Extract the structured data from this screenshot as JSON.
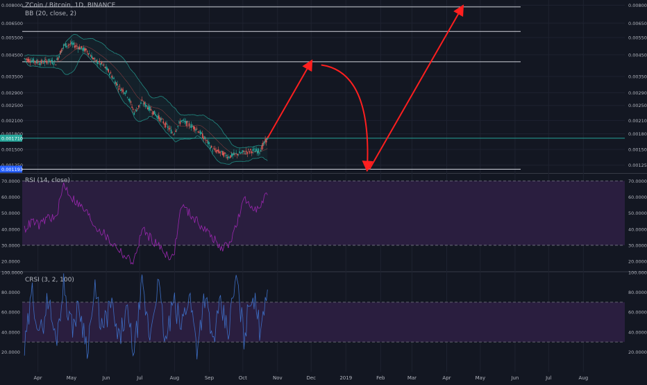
{
  "header": {
    "title": "ZCoin / Bitcoin, 1D, BINANCE",
    "bb_indicator": "BB (20, close, 2)",
    "rsi_indicator": "RSI (14, close)",
    "crsi_indicator": "CRSI (3, 2, 100)"
  },
  "colors": {
    "background": "#131722",
    "candle_up": "#26a69a",
    "candle_down": "#ef5350",
    "bollinger": "#26a69a",
    "rsi_line": "#9c27b0",
    "rsi_band": "#2a1e3f",
    "crsi_line": "#3d6ec5",
    "crsi_band": "#2a1e3f",
    "projection_arrow": "#ff1f1f",
    "level_line": "#d1d4dc",
    "price_tag_current": "#26a69a",
    "price_tag_support": "#2962ff",
    "axis_text": "#b2b5be",
    "gridline": "#1e2230"
  },
  "chart_data": [
    {
      "type": "candlestick",
      "name": "price-pane",
      "title": "ZCoin / Bitcoin, 1D, BINANCE",
      "y_scale": "log",
      "ylim": [
        0.00115,
        0.0085
      ],
      "y_tick_labels_left": [
        "0.008000",
        "0.006500",
        "0.005500",
        "0.004500",
        "0.003500",
        "0.002900",
        "0.002500",
        "0.002100",
        "0.001800",
        "0.001500",
        "0.001250"
      ],
      "y_tick_values_left": [
        0.008,
        0.0065,
        0.0055,
        0.0045,
        0.0035,
        0.0029,
        0.0025,
        0.0021,
        0.0018,
        0.0015,
        0.00125
      ],
      "y_tick_labels_right": [
        "0.008000",
        "0.006500",
        "0.005500",
        "0.004500",
        "0.003500",
        "0.002900",
        "0.002500",
        "0.002100",
        "0.001800",
        "0.001500",
        "0.001250"
      ],
      "y_tick_values_right": [
        0.008,
        0.0065,
        0.0055,
        0.0045,
        0.0035,
        0.0029,
        0.0025,
        0.0021,
        0.0018,
        0.0015,
        0.00125
      ],
      "price_tags": [
        {
          "label": "0.001710",
          "value": 0.00171,
          "kind": "current"
        },
        {
          "label": "0.001193",
          "value": 0.001193,
          "kind": "support"
        }
      ],
      "horizontal_levels": [
        0.00785,
        0.0059,
        0.00415,
        0.00171,
        0.001193
      ],
      "indicator": "BB (20, close, 2)",
      "price_path_weekly": [
        {
          "date": "2018-03-20",
          "close": 0.0043
        },
        {
          "date": "2018-03-27",
          "close": 0.0042
        },
        {
          "date": "2018-04-03",
          "close": 0.0041
        },
        {
          "date": "2018-04-10",
          "close": 0.0042
        },
        {
          "date": "2018-04-17",
          "close": 0.0041
        },
        {
          "date": "2018-04-24",
          "close": 0.005
        },
        {
          "date": "2018-05-01",
          "close": 0.0051
        },
        {
          "date": "2018-05-08",
          "close": 0.0049
        },
        {
          "date": "2018-05-15",
          "close": 0.0047
        },
        {
          "date": "2018-05-22",
          "close": 0.0042
        },
        {
          "date": "2018-05-29",
          "close": 0.004
        },
        {
          "date": "2018-06-05",
          "close": 0.0036
        },
        {
          "date": "2018-06-12",
          "close": 0.0031
        },
        {
          "date": "2018-06-19",
          "close": 0.0029
        },
        {
          "date": "2018-06-26",
          "close": 0.0023
        },
        {
          "date": "2018-07-03",
          "close": 0.0026
        },
        {
          "date": "2018-07-10",
          "close": 0.0024
        },
        {
          "date": "2018-07-17",
          "close": 0.0022
        },
        {
          "date": "2018-07-24",
          "close": 0.002
        },
        {
          "date": "2018-07-31",
          "close": 0.0018
        },
        {
          "date": "2018-08-07",
          "close": 0.0021
        },
        {
          "date": "2018-08-14",
          "close": 0.002
        },
        {
          "date": "2018-08-21",
          "close": 0.0019
        },
        {
          "date": "2018-08-28",
          "close": 0.0017
        },
        {
          "date": "2018-09-04",
          "close": 0.0015
        },
        {
          "date": "2018-09-11",
          "close": 0.00145
        },
        {
          "date": "2018-09-18",
          "close": 0.00138
        },
        {
          "date": "2018-09-25",
          "close": 0.00142
        },
        {
          "date": "2018-10-02",
          "close": 0.00145
        },
        {
          "date": "2018-10-09",
          "close": 0.00148
        },
        {
          "date": "2018-10-16",
          "close": 0.00147
        },
        {
          "date": "2018-10-23",
          "close": 0.00171
        }
      ],
      "projection_path": [
        {
          "date": "2018-10-23",
          "value": 0.00171
        },
        {
          "date": "2018-12-01",
          "value": 0.00415
        },
        {
          "date": "2018-12-10",
          "value": 0.004
        },
        {
          "date": "2019-01-20",
          "value": 0.001193
        },
        {
          "date": "2019-01-22",
          "value": 0.001193
        },
        {
          "date": "2019-04-15",
          "value": 0.00785
        }
      ]
    },
    {
      "type": "line",
      "name": "rsi-pane",
      "title": "RSI (14, close)",
      "ylim": [
        14,
        74
      ],
      "band": [
        30,
        70
      ],
      "y_tick_labels": [
        "70.0000",
        "60.0000",
        "50.0000",
        "40.0000",
        "30.0000",
        "20.0000"
      ],
      "y_tick_values": [
        70,
        60,
        50,
        40,
        30,
        20
      ],
      "x": [
        "2018-03-20",
        "2018-03-27",
        "2018-04-03",
        "2018-04-10",
        "2018-04-17",
        "2018-04-24",
        "2018-05-01",
        "2018-05-08",
        "2018-05-15",
        "2018-05-22",
        "2018-05-29",
        "2018-06-05",
        "2018-06-12",
        "2018-06-19",
        "2018-06-26",
        "2018-07-03",
        "2018-07-10",
        "2018-07-17",
        "2018-07-24",
        "2018-07-31",
        "2018-08-07",
        "2018-08-14",
        "2018-08-21",
        "2018-08-28",
        "2018-09-04",
        "2018-09-11",
        "2018-09-18",
        "2018-09-25",
        "2018-10-02",
        "2018-10-09",
        "2018-10-16",
        "2018-10-23"
      ],
      "values": [
        40,
        45,
        42,
        48,
        46,
        68,
        60,
        55,
        50,
        42,
        38,
        32,
        28,
        22,
        20,
        40,
        35,
        30,
        25,
        22,
        55,
        50,
        45,
        40,
        35,
        28,
        30,
        42,
        58,
        55,
        52,
        63
      ]
    },
    {
      "type": "line",
      "name": "crsi-pane",
      "title": "CRSI (3, 2, 100)",
      "ylim": [
        0,
        100
      ],
      "band": [
        30,
        70
      ],
      "y_tick_labels": [
        "100.0000",
        "80.0000",
        "60.0000",
        "40.0000",
        "20.0000"
      ],
      "y_tick_values": [
        100,
        80,
        60,
        40,
        20
      ],
      "x": [
        "2018-03-20",
        "2018-03-27",
        "2018-04-03",
        "2018-04-10",
        "2018-04-17",
        "2018-04-24",
        "2018-05-01",
        "2018-05-08",
        "2018-05-15",
        "2018-05-22",
        "2018-05-29",
        "2018-06-05",
        "2018-06-12",
        "2018-06-19",
        "2018-06-26",
        "2018-07-03",
        "2018-07-10",
        "2018-07-17",
        "2018-07-24",
        "2018-07-31",
        "2018-08-07",
        "2018-08-14",
        "2018-08-21",
        "2018-08-28",
        "2018-09-04",
        "2018-09-11",
        "2018-09-18",
        "2018-09-25",
        "2018-10-02",
        "2018-10-09",
        "2018-10-16",
        "2018-10-23"
      ],
      "values": [
        20,
        80,
        35,
        75,
        30,
        88,
        45,
        65,
        25,
        80,
        40,
        70,
        30,
        60,
        20,
        85,
        35,
        92,
        28,
        70,
        45,
        80,
        25,
        78,
        30,
        65,
        40,
        95,
        35,
        82,
        45,
        87
      ]
    }
  ],
  "x_axis": {
    "labels": [
      "Apr",
      "May",
      "Jun",
      "Jul",
      "Aug",
      "Sep",
      "Oct",
      "Nov",
      "Dec",
      "2019",
      "Feb",
      "Mar",
      "Apr",
      "May",
      "Jun",
      "Jul",
      "Aug"
    ],
    "dates": [
      "2018-04-01",
      "2018-05-01",
      "2018-06-01",
      "2018-07-01",
      "2018-08-01",
      "2018-09-01",
      "2018-10-01",
      "2018-11-01",
      "2018-12-01",
      "2019-01-01",
      "2019-02-01",
      "2019-03-01",
      "2019-04-01",
      "2019-05-01",
      "2019-06-01",
      "2019-07-01",
      "2019-08-01"
    ]
  }
}
